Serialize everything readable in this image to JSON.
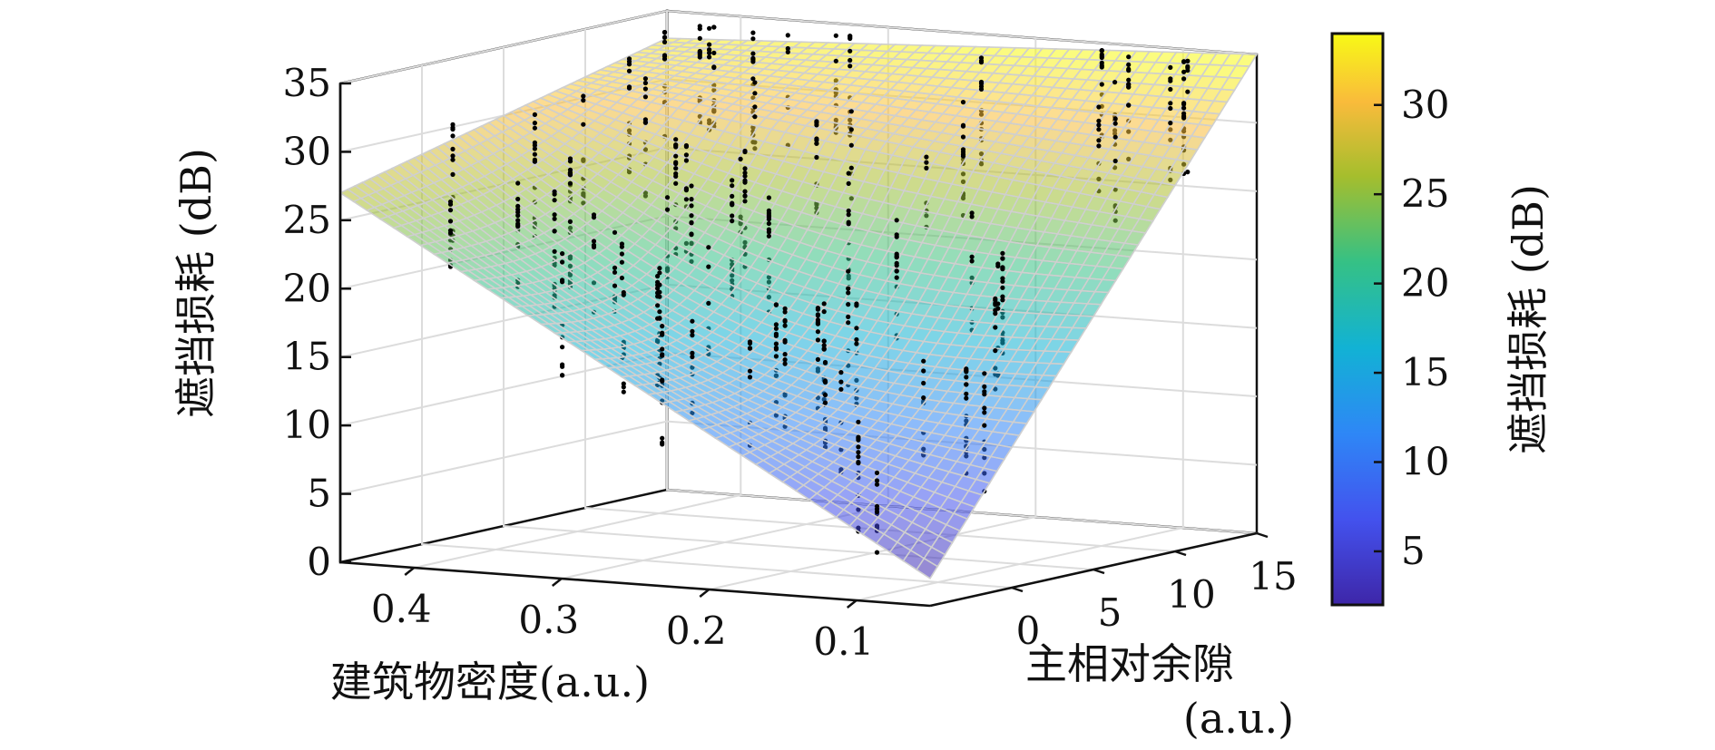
{
  "chart_data": {
    "type": "surface3d",
    "z_axis": {
      "label": "遮挡损耗 (dB)",
      "range": [
        0,
        35
      ],
      "ticks": [
        "0",
        "5",
        "10",
        "15",
        "20",
        "25",
        "30",
        "35"
      ]
    },
    "x_axis": {
      "label": "建筑物密度(a.u.)",
      "range": [
        0.05,
        0.45
      ],
      "ticks": [
        "0.4",
        "0.3",
        "0.2",
        "0.1"
      ]
    },
    "y_axis": {
      "label_line1": "主相对余隙",
      "label_line2": "(a.u.)",
      "range": [
        -5,
        15
      ],
      "ticks": [
        "0",
        "5",
        "10",
        "15"
      ]
    },
    "colorbar": {
      "label": "遮挡损耗 (dB)",
      "range": [
        2,
        34
      ],
      "ticks": [
        "5",
        "10",
        "15",
        "20",
        "25",
        "30"
      ]
    },
    "surface_corners_db": {
      "density_0.45_clearance_-5": 27,
      "density_0.45_clearance_15": 33,
      "density_0.05_clearance_-5": 2,
      "density_0.05_clearance_15": 35
    },
    "scatter_series": "measured",
    "grid": true
  }
}
